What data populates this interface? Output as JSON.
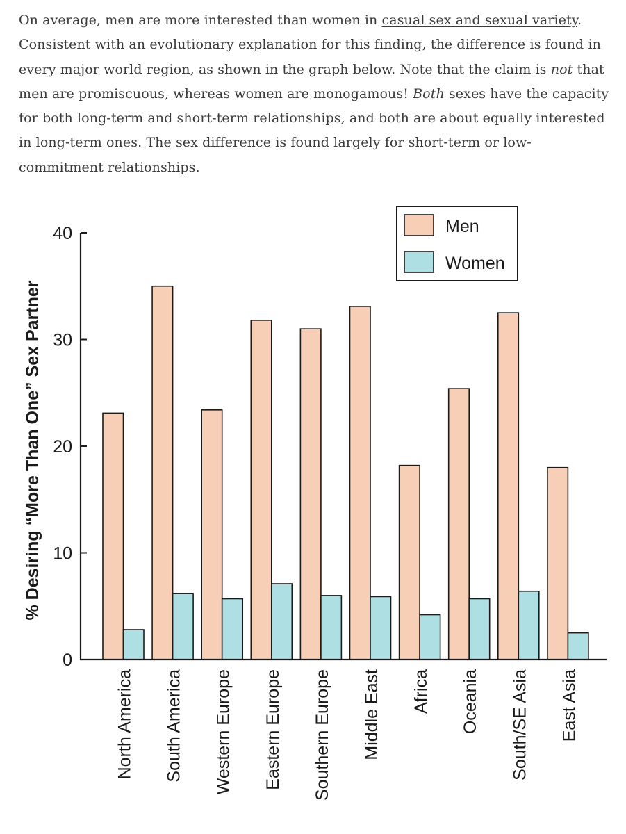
{
  "article": {
    "segments": [
      {
        "type": "text",
        "text": "On average, men are more interested than women in "
      },
      {
        "type": "link",
        "text": "casual sex and sexual variety"
      },
      {
        "type": "text",
        "text": ". Consistent with an evolutionary explanation for this finding, the difference is found in "
      },
      {
        "type": "link",
        "text": "every major world region"
      },
      {
        "type": "text",
        "text": ", as shown in the "
      },
      {
        "type": "link",
        "text": "graph"
      },
      {
        "type": "text",
        "text": " below. Note that the claim is "
      },
      {
        "type": "em-link",
        "text": "not"
      },
      {
        "type": "text",
        "text": " that men are promiscuous, whereas women are monogamous! "
      },
      {
        "type": "em",
        "text": "Both"
      },
      {
        "type": "text",
        "text": " sexes have the capacity for both long-term and short-term relationships, and both are about equally interested in long-term ones. The sex difference is found largely for short-term or low-commitment relationships."
      }
    ]
  },
  "colors": {
    "men": "#f6cfb6",
    "women": "#aee0e3",
    "axis": "#1a1a1a",
    "text": "#3a3a3a"
  },
  "chart_data": {
    "type": "bar",
    "title": "",
    "xlabel": "",
    "ylabel": "% Desiring “More Than One” Sex Partner",
    "ylim": [
      0,
      40
    ],
    "yticks": [
      0,
      10,
      20,
      30,
      40
    ],
    "legend_position": "top-right",
    "categories": [
      "North America",
      "South America",
      "Western Europe",
      "Eastern Europe",
      "Southern Europe",
      "Middle East",
      "Africa",
      "Oceania",
      "South/SE Asia",
      "East Asia"
    ],
    "series": [
      {
        "name": "Men",
        "color": "#f6cfb6",
        "values": [
          23.1,
          35.0,
          23.4,
          31.8,
          31.0,
          33.1,
          18.2,
          25.4,
          32.5,
          18.0
        ]
      },
      {
        "name": "Women",
        "color": "#aee0e3",
        "values": [
          2.8,
          6.2,
          5.7,
          7.1,
          6.0,
          5.9,
          4.2,
          5.7,
          6.4,
          2.5
        ]
      }
    ]
  }
}
